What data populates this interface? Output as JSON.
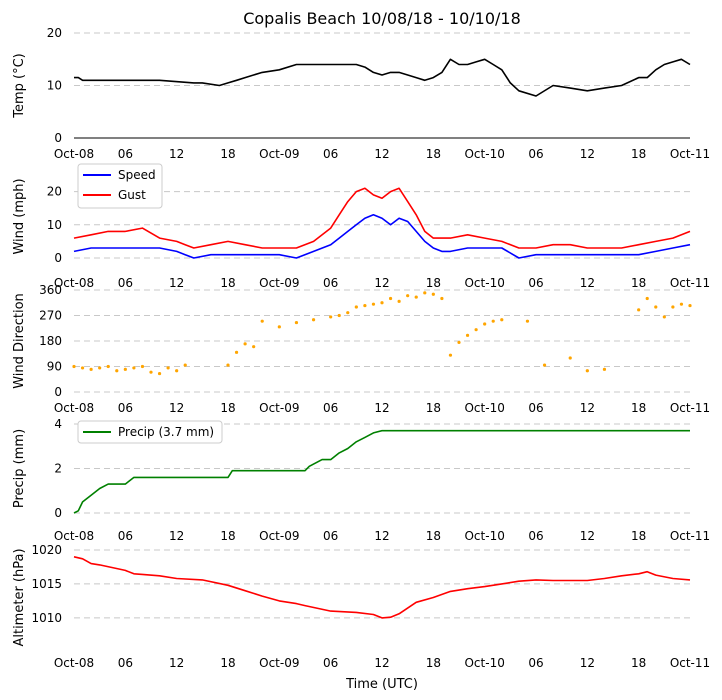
{
  "figure": {
    "title": "Copalis Beach 10/08/18 - 10/10/18",
    "xlabel": "Time (UTC)"
  },
  "chart_data": [
    {
      "type": "line",
      "ylabel": "Temp ($^\\circ$C)",
      "ylabel_display": "Temp (°C)",
      "ylim": [
        0,
        20
      ],
      "yticks": [
        0,
        10,
        20
      ],
      "xlim": [
        0,
        72
      ],
      "xtick_labels": [
        "Oct-08",
        "06",
        "12",
        "18",
        "Oct-09",
        "06",
        "12",
        "18",
        "Oct-10",
        "06",
        "12",
        "18",
        "Oct-11"
      ],
      "grid": "horizontal dashed",
      "series": [
        {
          "color": "#000000",
          "x": [
            0,
            0.5,
            1,
            3,
            6,
            10,
            14,
            15,
            17,
            18,
            19,
            20,
            22,
            24,
            26,
            28,
            30,
            31,
            32,
            33,
            34,
            35,
            36,
            37,
            38,
            39,
            40,
            41,
            42,
            43,
            44,
            45,
            46,
            47,
            48,
            49,
            50,
            51,
            52,
            54,
            56,
            58,
            60,
            62,
            64,
            66,
            67,
            68,
            69,
            70,
            71,
            72
          ],
          "y": [
            11.5,
            11.5,
            11,
            11,
            11,
            11,
            10.5,
            10.5,
            10,
            10.5,
            11,
            11.5,
            12.5,
            13,
            14,
            14,
            14,
            14,
            14,
            14,
            13.5,
            12.5,
            12,
            12.5,
            12.5,
            12,
            11.5,
            11,
            11.5,
            12.5,
            15,
            14,
            14,
            14.5,
            15,
            14,
            13,
            10.5,
            9,
            8,
            10,
            9.5,
            9,
            9.5,
            10,
            11.5,
            11.5,
            13,
            14,
            14.5,
            15,
            14
          ]
        }
      ]
    },
    {
      "type": "line",
      "ylabel": "Wind (mph)",
      "ylim": [
        0,
        25
      ],
      "yticks": [
        0,
        10,
        20
      ],
      "xlim": [
        0,
        72
      ],
      "xtick_labels": [
        "Oct-08",
        "06",
        "12",
        "18",
        "Oct-09",
        "06",
        "12",
        "18",
        "Oct-10",
        "06",
        "12",
        "18",
        "Oct-11"
      ],
      "grid": "horizontal dashed",
      "legend": "upper-left",
      "series": [
        {
          "name": "Speed",
          "color": "#0000ff",
          "x": [
            0,
            2,
            4,
            6,
            8,
            10,
            12,
            13,
            14,
            16,
            18,
            20,
            22,
            24,
            26,
            28,
            30,
            31,
            32,
            33,
            34,
            35,
            36,
            37,
            38,
            39,
            40,
            41,
            42,
            43,
            44,
            46,
            48,
            50,
            52,
            54,
            56,
            58,
            60,
            62,
            64,
            66,
            68,
            70,
            72
          ],
          "y": [
            2,
            3,
            3,
            3,
            3,
            3,
            2,
            1,
            0,
            1,
            1,
            1,
            1,
            1,
            0,
            2,
            4,
            6,
            8,
            10,
            12,
            13,
            12,
            10,
            12,
            11,
            8,
            5,
            3,
            2,
            2,
            3,
            3,
            3,
            0,
            1,
            1,
            1,
            1,
            1,
            1,
            1,
            2,
            3,
            4
          ]
        },
        {
          "name": "Gust",
          "color": "#ff0000",
          "x": [
            0,
            2,
            4,
            6,
            8,
            10,
            12,
            13,
            14,
            16,
            18,
            20,
            22,
            24,
            26,
            28,
            30,
            31,
            32,
            33,
            34,
            35,
            36,
            37,
            38,
            39,
            40,
            41,
            42,
            43,
            44,
            46,
            48,
            50,
            52,
            54,
            56,
            58,
            60,
            62,
            64,
            66,
            68,
            70,
            72
          ],
          "y": [
            6,
            7,
            8,
            8,
            9,
            6,
            5,
            4,
            3,
            4,
            5,
            4,
            3,
            3,
            3,
            5,
            9,
            13,
            17,
            20,
            21,
            19,
            18,
            20,
            21,
            17,
            13,
            8,
            6,
            6,
            6,
            7,
            6,
            5,
            3,
            3,
            4,
            4,
            3,
            3,
            3,
            4,
            5,
            6,
            8
          ]
        }
      ]
    },
    {
      "type": "scatter",
      "ylabel": "Wind Direction",
      "ylim": [
        0,
        360
      ],
      "yticks": [
        0,
        90,
        180,
        270,
        360
      ],
      "xlim": [
        0,
        72
      ],
      "xtick_labels": [
        "Oct-08",
        "06",
        "12",
        "18",
        "Oct-09",
        "06",
        "12",
        "18",
        "Oct-10",
        "06",
        "12",
        "18",
        "Oct-11"
      ],
      "grid": "horizontal dashed",
      "series": [
        {
          "color": "#ffa500",
          "x": [
            0,
            1,
            2,
            3,
            4,
            5,
            6,
            7,
            8,
            9,
            10,
            11,
            12,
            13,
            18,
            19,
            20,
            21,
            22,
            24,
            26,
            28,
            30,
            31,
            32,
            33,
            34,
            35,
            36,
            37,
            38,
            39,
            40,
            41,
            42,
            43,
            44,
            45,
            46,
            47,
            48,
            49,
            50,
            53,
            55,
            58,
            60,
            62,
            66,
            67,
            68,
            69,
            70,
            71,
            72
          ],
          "y": [
            90,
            85,
            80,
            85,
            90,
            75,
            80,
            85,
            90,
            70,
            65,
            85,
            75,
            95,
            95,
            140,
            170,
            160,
            250,
            230,
            245,
            255,
            265,
            270,
            280,
            300,
            305,
            310,
            315,
            330,
            320,
            340,
            335,
            350,
            345,
            330,
            130,
            175,
            200,
            220,
            240,
            250,
            255,
            250,
            95,
            120,
            75,
            80,
            290,
            330,
            300,
            265,
            300,
            310,
            305
          ]
        }
      ]
    },
    {
      "type": "line",
      "ylabel": "Precip (mm)",
      "ylim": [
        0,
        4
      ],
      "yticks": [
        0,
        2,
        4
      ],
      "xlim": [
        0,
        72
      ],
      "xtick_labels": [
        "Oct-08",
        "06",
        "12",
        "18",
        "Oct-09",
        "06",
        "12",
        "18",
        "Oct-10",
        "06",
        "12",
        "18",
        "Oct-11"
      ],
      "grid": "horizontal dashed",
      "legend": "upper-left",
      "series": [
        {
          "name": "Precip (3.7 mm)",
          "color": "#008000",
          "x": [
            0,
            0.5,
            1,
            2,
            3,
            4,
            6,
            7,
            9,
            12,
            15,
            18,
            18.5,
            21,
            24,
            27,
            27.5,
            29,
            30,
            31,
            32,
            33,
            34,
            35,
            36,
            37,
            40,
            45,
            50,
            55,
            60,
            65,
            70,
            72
          ],
          "y": [
            0,
            0.1,
            0.5,
            0.8,
            1.1,
            1.3,
            1.3,
            1.6,
            1.6,
            1.6,
            1.6,
            1.6,
            1.9,
            1.9,
            1.9,
            1.9,
            2.1,
            2.4,
            2.4,
            2.7,
            2.9,
            3.2,
            3.4,
            3.6,
            3.7,
            3.7,
            3.7,
            3.7,
            3.7,
            3.7,
            3.7,
            3.7,
            3.7,
            3.7
          ]
        }
      ]
    },
    {
      "type": "line",
      "ylabel": "Altimeter (hPa)",
      "ylim": [
        1006,
        1020
      ],
      "yticks": [
        1010,
        1015,
        1020
      ],
      "xlim": [
        0,
        72
      ],
      "xtick_labels": [
        "Oct-08",
        "06",
        "12",
        "18",
        "Oct-09",
        "06",
        "12",
        "18",
        "Oct-10",
        "06",
        "12",
        "18",
        "Oct-11"
      ],
      "grid": "horizontal dashed",
      "series": [
        {
          "color": "#ff0000",
          "x": [
            0,
            1,
            2,
            3,
            6,
            7,
            8,
            10,
            12,
            15,
            18,
            20,
            22,
            24,
            26,
            27,
            30,
            33,
            35,
            36,
            37,
            38,
            40,
            42,
            44,
            46,
            48,
            50,
            52,
            54,
            56,
            60,
            62,
            64,
            66,
            67,
            68,
            70,
            72
          ],
          "y": [
            1019,
            1018.7,
            1018,
            1017.8,
            1017,
            1016.5,
            1016.4,
            1016.2,
            1015.8,
            1015.6,
            1014.8,
            1014,
            1013.2,
            1012.5,
            1012.1,
            1011.8,
            1011,
            1010.8,
            1010.5,
            1010,
            1010.1,
            1010.6,
            1012.3,
            1013,
            1013.9,
            1014.3,
            1014.6,
            1015,
            1015.4,
            1015.6,
            1015.5,
            1015.5,
            1015.8,
            1016.2,
            1016.5,
            1016.8,
            1016.3,
            1015.8,
            1015.6
          ]
        }
      ]
    }
  ]
}
